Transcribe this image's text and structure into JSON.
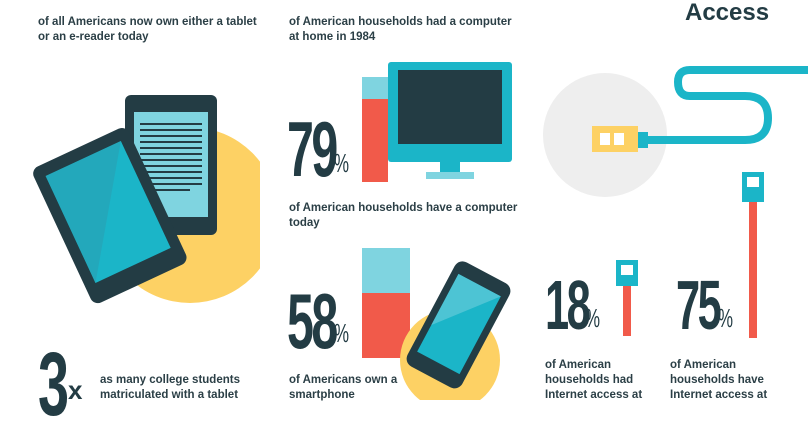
{
  "top_left_caption": "of all Americans now own either a tablet or an e-reader today",
  "computer_1984_caption": "of American households had a computer at home in 1984",
  "access_title": "Access",
  "computer_today": {
    "value": "79",
    "unit": "%",
    "caption": "of American households have a computer today"
  },
  "smartphone": {
    "value": "58",
    "unit": "%",
    "caption": "of Americans own a smartphone"
  },
  "internet_past": {
    "value": "18",
    "unit": "%",
    "caption": "of American households had Internet access at"
  },
  "internet_now": {
    "value": "75",
    "unit": "%",
    "caption": "of American households have Internet access at"
  },
  "students": {
    "value": "3",
    "unit": "x",
    "caption": "as many college students matriculated with a tablet"
  },
  "colors": {
    "teal": "#1bb5c8",
    "dark": "#233c44",
    "red": "#f15a4a",
    "yellow": "#fdd164",
    "lightblue": "#7fd4e0",
    "grey": "#eeeeee"
  }
}
